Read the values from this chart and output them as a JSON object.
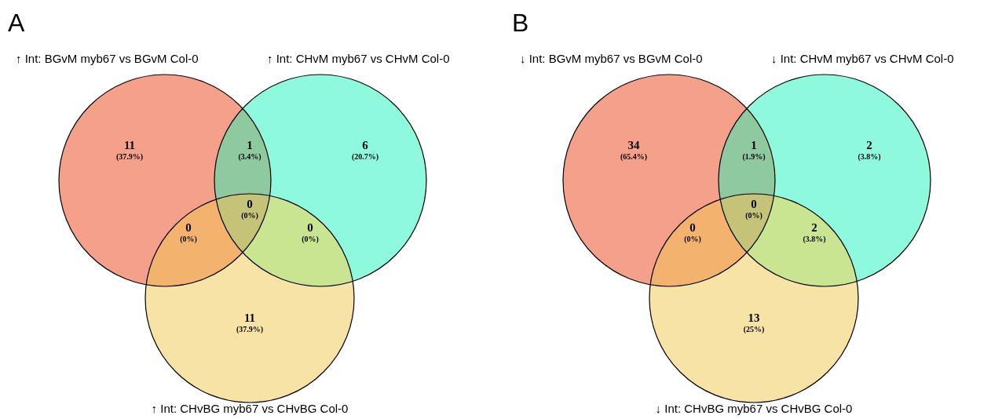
{
  "chart_data": [
    {
      "type": "other",
      "title": "A",
      "categories": [
        "(37.9%)",
        "(3.4%)",
        "(20.7%)",
        "(0%)",
        "(0%)",
        "(0%)",
        "(37.9%)"
      ],
      "values": [
        11,
        1,
        6,
        0,
        0,
        0,
        11
      ],
      "colors": [
        "#f5a08a",
        "#8ec9a0",
        "#8ff9de",
        "#f3b26e",
        "#c4c377",
        "#c9e592",
        "#f8e3a6"
      ],
      "annotations": [
        "↑ Int: BGvM myb67 vs BGvM Col-0",
        "↑ Int: CHvM myb67 vs CHvM Col-0",
        "↑ Int: CHvBG myb67 vs CHvBG Col-0"
      ],
      "data_labels": true
    },
    {
      "type": "other",
      "title": "B",
      "categories": [
        "(65.4%)",
        "(1.9%)",
        "(3.8%)",
        "(0%)",
        "(0%)",
        "(3.8%)",
        "(25%)"
      ],
      "values": [
        34,
        1,
        2,
        0,
        0,
        2,
        13
      ],
      "colors": [
        "#f5a08a",
        "#8ec9a0",
        "#8ff9de",
        "#f3b26e",
        "#c4c377",
        "#c9e592",
        "#f8e3a6"
      ],
      "annotations": [
        "↓ Int: BGvM myb67 vs BGvM Col-0",
        "↓ Int: CHvM myb67 vs CHvM Col-0",
        "↓ Int: CHvBG myb67 vs CHvBG Col-0"
      ],
      "data_labels": true
    }
  ]
}
